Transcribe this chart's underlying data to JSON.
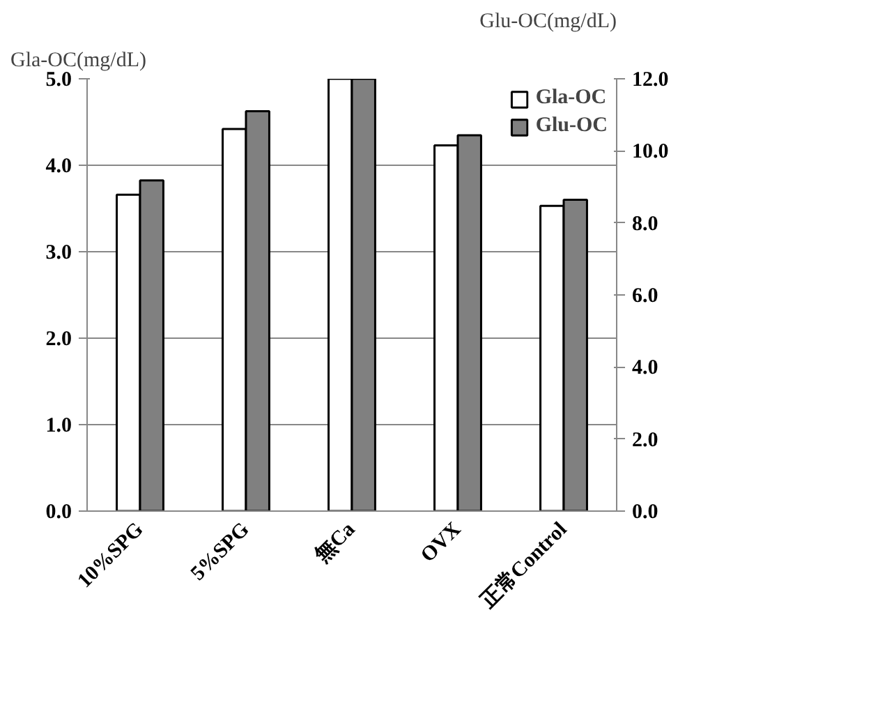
{
  "chart_data": {
    "type": "bar",
    "ylabel": "Gla-OC(mg/dL)",
    "y2label": "Glu-OC(mg/dL)",
    "categories": [
      "10%SPG",
      "5%SPG",
      "無Ca",
      "OVX",
      "正常Control"
    ],
    "series": [
      {
        "name": "Gla-OC",
        "color": "#ffffff",
        "values": [
          3.66,
          4.42,
          5.0,
          4.23,
          3.53
        ]
      },
      {
        "name": "Glu-OC",
        "color": "#808080",
        "axis": "y2",
        "values": [
          9.18,
          11.1,
          12.0,
          10.43,
          8.64
        ]
      }
    ],
    "ylim": [
      0,
      5.0
    ],
    "yticks": [
      {
        "value": 0,
        "label": "0.0"
      },
      {
        "value": 1,
        "label": "1.0"
      },
      {
        "value": 2,
        "label": "2.0"
      },
      {
        "value": 3,
        "label": "3.0"
      },
      {
        "value": 4,
        "label": "4.0"
      },
      {
        "value": 5,
        "label": "5.0"
      }
    ],
    "y2lim": [
      0,
      12.0
    ],
    "y2ticks": [
      {
        "value": 0,
        "label": "0.0"
      },
      {
        "value": 2,
        "label": "2.0"
      },
      {
        "value": 4,
        "label": "4.0"
      },
      {
        "value": 6,
        "label": "6.0"
      },
      {
        "value": 8,
        "label": "8.0"
      },
      {
        "value": 10,
        "label": "10.0"
      },
      {
        "value": 12,
        "label": "12.0"
      }
    ],
    "grid": "y",
    "legend": "top right"
  }
}
